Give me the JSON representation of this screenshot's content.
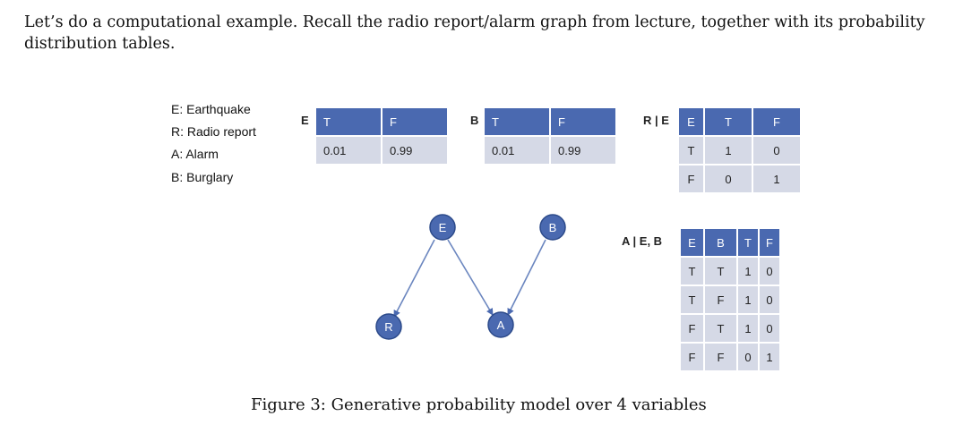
{
  "intro": "Let’s do a computational example. Recall the radio report/alarm graph from lecture, together with its probability distribution tables.",
  "legend": [
    "E: Earthquake",
    "R: Radio report",
    "A: Alarm",
    "B: Burglary"
  ],
  "table_E": {
    "label": "E",
    "headers": [
      "T",
      "F"
    ],
    "values": [
      "0.01",
      "0.99"
    ]
  },
  "table_B": {
    "label": "B",
    "headers": [
      "T",
      "F"
    ],
    "values": [
      "0.01",
      "0.99"
    ]
  },
  "table_RE": {
    "label": "R | E",
    "headers": [
      "E",
      "T",
      "F"
    ],
    "rows": [
      [
        "T",
        "1",
        "0"
      ],
      [
        "F",
        "0",
        "1"
      ]
    ]
  },
  "table_AEB": {
    "label": "A | E, B",
    "headers": [
      "E",
      "B",
      "T",
      "F"
    ],
    "rows": [
      [
        "T",
        "T",
        "1",
        "0"
      ],
      [
        "T",
        "F",
        "1",
        "0"
      ],
      [
        "F",
        "T",
        "1",
        "0"
      ],
      [
        "F",
        "F",
        "0",
        "1"
      ]
    ]
  },
  "nodes": {
    "E": "E",
    "B": "B",
    "R": "R",
    "A": "A"
  },
  "colors": {
    "header_blue": "#4a69b0",
    "cell_gray": "#d5d9e6",
    "node_blue": "#4a69b0",
    "edge": "#4a69b0"
  },
  "caption": "Figure 3: Generative probability model over 4 variables"
}
